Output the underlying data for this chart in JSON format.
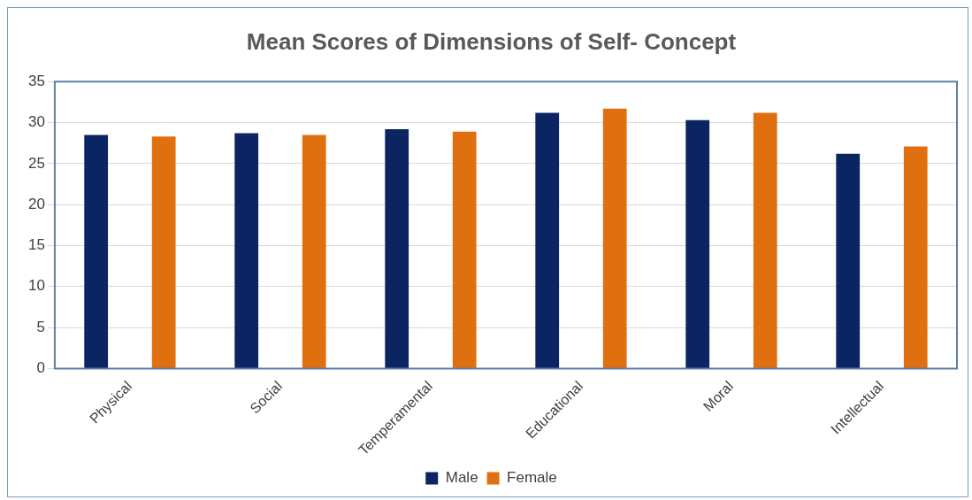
{
  "chart_data": {
    "type": "bar",
    "title": "Mean Scores of Dimensions of Self- Concept",
    "categories": [
      "Physical",
      "Social",
      "Temperamental",
      "Educational",
      "Moral",
      "Intellectual"
    ],
    "series": [
      {
        "name": "Male",
        "color": "#0c2461",
        "values": [
          28.5,
          28.7,
          29.2,
          31.2,
          30.3,
          26.2
        ]
      },
      {
        "name": "Female",
        "color": "#e0700f",
        "values": [
          28.3,
          28.5,
          28.9,
          31.7,
          31.2,
          27.1
        ]
      }
    ],
    "ylim": [
      0,
      35
    ],
    "yticks": [
      0,
      5,
      10,
      15,
      20,
      25,
      30,
      35
    ],
    "grid": "y",
    "legend": "bottom"
  }
}
